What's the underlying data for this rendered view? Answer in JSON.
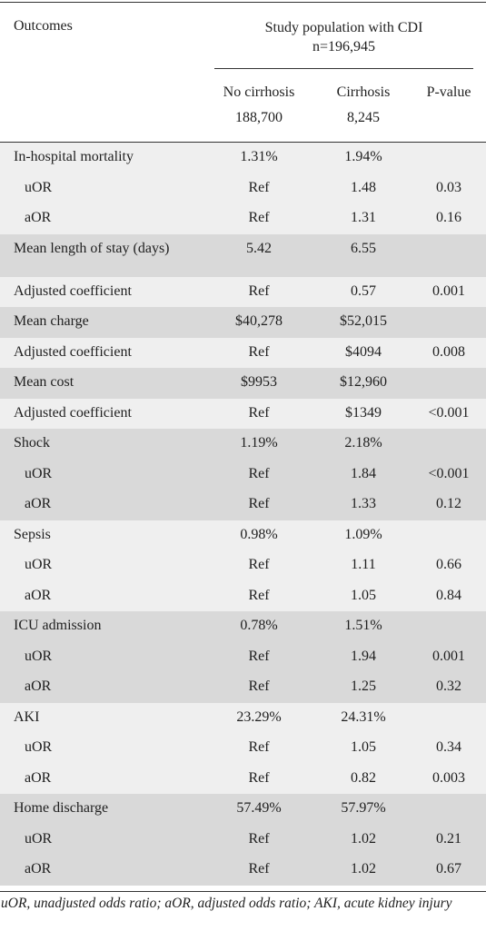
{
  "header": {
    "outcomes": "Outcomes",
    "study_line1": "Study population with CDI",
    "study_line2": "n=196,945",
    "col1_title": "No cirrhosis",
    "col1_n": "188,700",
    "col2_title": "Cirrhosis",
    "col2_n": "8,245",
    "col3_title": "P-value"
  },
  "rows": [
    {
      "label": "In-hospital mortality",
      "indent": false,
      "v1": "1.31%",
      "v2": "1.94%",
      "v3": "",
      "band": "g1",
      "tall": false
    },
    {
      "label": "uOR",
      "indent": true,
      "v1": "Ref",
      "v2": "1.48",
      "v3": "0.03",
      "band": "g1",
      "tall": false
    },
    {
      "label": "aOR",
      "indent": true,
      "v1": "Ref",
      "v2": "1.31",
      "v3": "0.16",
      "band": "g1",
      "tall": false
    },
    {
      "label": "Mean length of stay (days)",
      "indent": false,
      "v1": "5.42",
      "v2": "6.55",
      "v3": "",
      "band": "g2",
      "tall": true
    },
    {
      "label": "Adjusted coefficient",
      "indent": false,
      "v1": "Ref",
      "v2": "0.57",
      "v3": "0.001",
      "band": "g1",
      "tall": false
    },
    {
      "label": "Mean charge",
      "indent": false,
      "v1": "$40,278",
      "v2": "$52,015",
      "v3": "",
      "band": "g2",
      "tall": false
    },
    {
      "label": "Adjusted coefficient",
      "indent": false,
      "v1": "Ref",
      "v2": "$4094",
      "v3": "0.008",
      "band": "g1",
      "tall": false
    },
    {
      "label": "Mean cost",
      "indent": false,
      "v1": "$9953",
      "v2": "$12,960",
      "v3": "",
      "band": "g2",
      "tall": false
    },
    {
      "label": "Adjusted coefficient",
      "indent": false,
      "v1": "Ref",
      "v2": "$1349",
      "v3": "<0.001",
      "band": "g1",
      "tall": false
    },
    {
      "label": "Shock",
      "indent": false,
      "v1": "1.19%",
      "v2": "2.18%",
      "v3": "",
      "band": "g2",
      "tall": false
    },
    {
      "label": "uOR",
      "indent": true,
      "v1": "Ref",
      "v2": "1.84",
      "v3": "<0.001",
      "band": "g2",
      "tall": false
    },
    {
      "label": "aOR",
      "indent": true,
      "v1": "Ref",
      "v2": "1.33",
      "v3": "0.12",
      "band": "g2",
      "tall": false
    },
    {
      "label": "Sepsis",
      "indent": false,
      "v1": "0.98%",
      "v2": "1.09%",
      "v3": "",
      "band": "g1",
      "tall": false
    },
    {
      "label": "uOR",
      "indent": true,
      "v1": "Ref",
      "v2": "1.11",
      "v3": "0.66",
      "band": "g1",
      "tall": false
    },
    {
      "label": "aOR",
      "indent": true,
      "v1": "Ref",
      "v2": "1.05",
      "v3": "0.84",
      "band": "g1",
      "tall": false
    },
    {
      "label": "ICU admission",
      "indent": false,
      "v1": "0.78%",
      "v2": "1.51%",
      "v3": "",
      "band": "g2",
      "tall": false
    },
    {
      "label": "uOR",
      "indent": true,
      "v1": "Ref",
      "v2": "1.94",
      "v3": "0.001",
      "band": "g2",
      "tall": false
    },
    {
      "label": "aOR",
      "indent": true,
      "v1": "Ref",
      "v2": "1.25",
      "v3": "0.32",
      "band": "g2",
      "tall": false
    },
    {
      "label": "AKI",
      "indent": false,
      "v1": "23.29%",
      "v2": "24.31%",
      "v3": "",
      "band": "g1",
      "tall": false
    },
    {
      "label": "uOR",
      "indent": true,
      "v1": "Ref",
      "v2": "1.05",
      "v3": "0.34",
      "band": "g1",
      "tall": false
    },
    {
      "label": "aOR",
      "indent": true,
      "v1": "Ref",
      "v2": "0.82",
      "v3": "0.003",
      "band": "g1",
      "tall": false
    },
    {
      "label": "Home discharge",
      "indent": false,
      "v1": "57.49%",
      "v2": "57.97%",
      "v3": "",
      "band": "g2",
      "tall": false
    },
    {
      "label": "uOR",
      "indent": true,
      "v1": "Ref",
      "v2": "1.02",
      "v3": "0.21",
      "band": "g2",
      "tall": false
    },
    {
      "label": "aOR",
      "indent": true,
      "v1": "Ref",
      "v2": "1.02",
      "v3": "0.67",
      "band": "g2",
      "tall": false
    }
  ],
  "footnote": "uOR, unadjusted odds ratio; aOR, adjusted odds ratio; AKI, acute kidney injury",
  "colors": {
    "band_light": "#efefef",
    "band_dark": "#d9d9d9"
  }
}
